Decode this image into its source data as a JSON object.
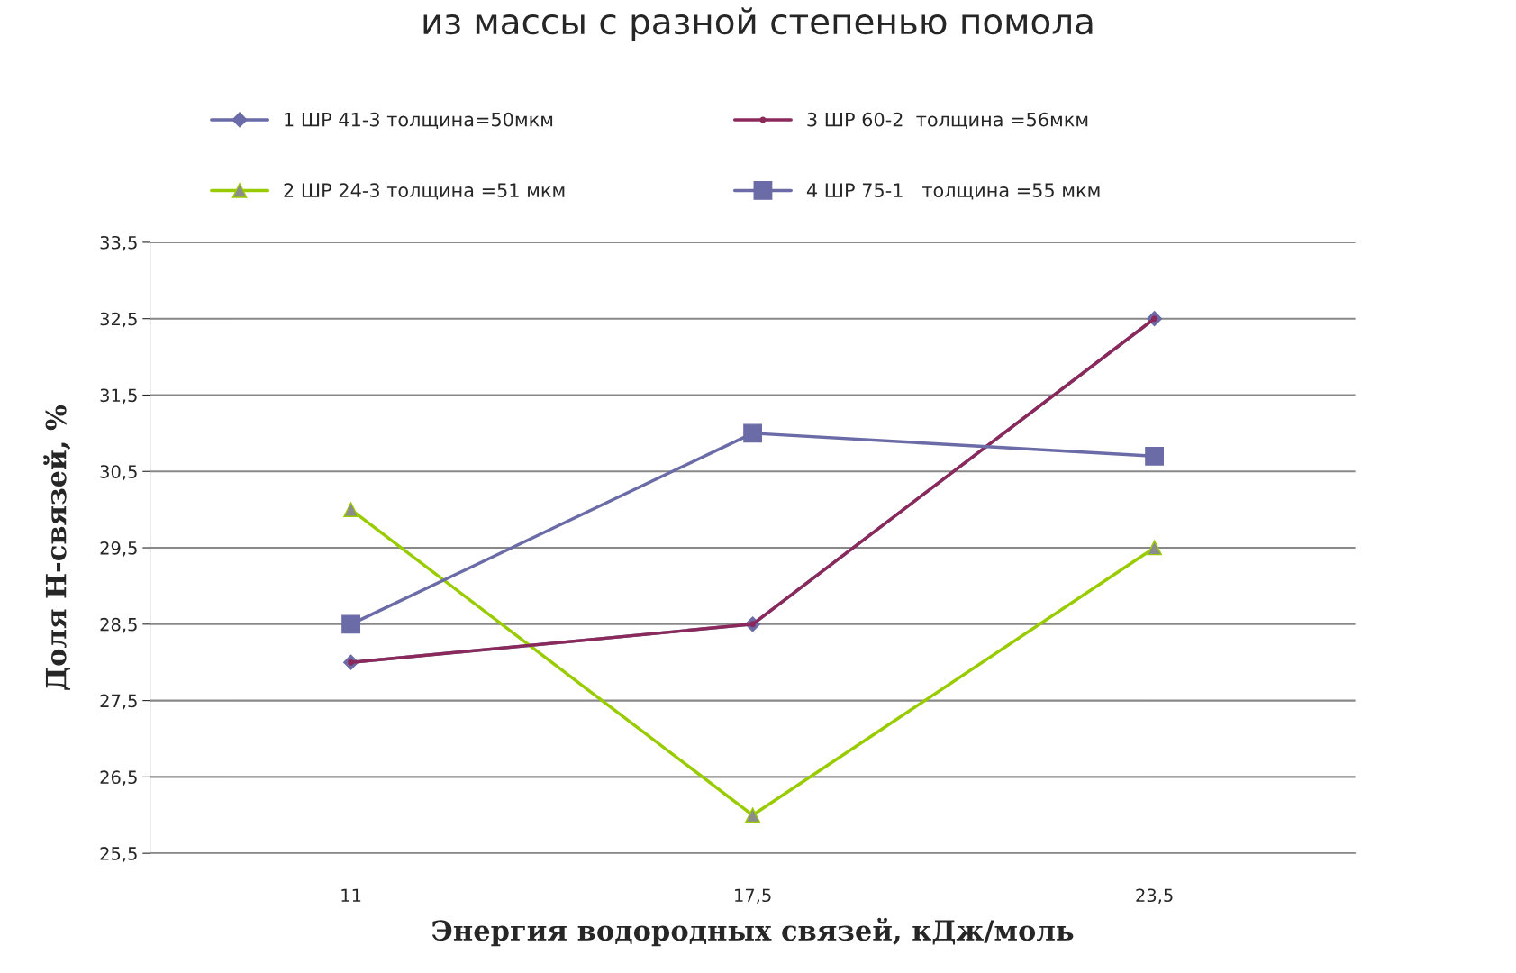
{
  "chart_data": {
    "type": "line",
    "title": "из массы с разной степенью помола",
    "xlabel": "Энергия водородных связей, кДж/моль",
    "ylabel": "Доля Н-связей, %",
    "categories": [
      "11",
      "17,5",
      "23,5"
    ],
    "series": [
      {
        "name": "1 ШР 41-3 толщина=50мкм",
        "color": "#6b6ba8",
        "marker": "diamond",
        "values": [
          28,
          28.5,
          32.5
        ]
      },
      {
        "name": "2 ШР 24-3 толщина =51 мкм",
        "color": "#99cc00",
        "marker": "triangle",
        "values": [
          30,
          26,
          29.5
        ]
      },
      {
        "name": "3 ШР 60-2  толщина =56мкм",
        "color": "#8b2a5a",
        "marker": "circle",
        "values": [
          28,
          28.5,
          32.5
        ]
      },
      {
        "name": "4 ШР 75-1   толщина =55 мкм",
        "color": "#6b6ba8",
        "marker": "square",
        "values": [
          28.5,
          31,
          30.7
        ]
      }
    ],
    "ylim": [
      25.5,
      33.5
    ],
    "yticks": [
      {
        "value": 25.5,
        "label": "25,5"
      },
      {
        "value": 26.5,
        "label": "26,5"
      },
      {
        "value": 27.5,
        "label": "27,5"
      },
      {
        "value": 28.5,
        "label": "28,5"
      },
      {
        "value": 29.5,
        "label": "29,5"
      },
      {
        "value": 30.5,
        "label": "30,5"
      },
      {
        "value": 31.5,
        "label": "31,5"
      },
      {
        "value": 32.5,
        "label": "32,5"
      },
      {
        "value": 33.5,
        "label": "33,5"
      }
    ],
    "grid": "y",
    "legend": "top",
    "line_style": "solid"
  }
}
